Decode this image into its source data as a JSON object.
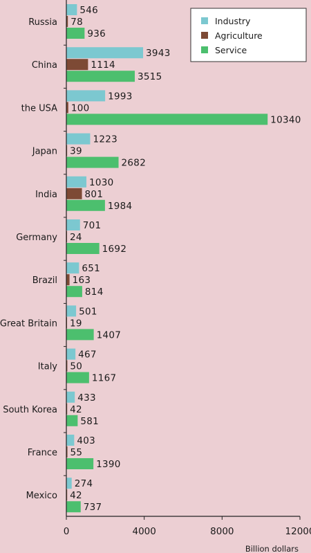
{
  "chart_data": {
    "type": "bar",
    "orientation": "horizontal",
    "categories": [
      "Russia",
      "China",
      "the USA",
      "Japan",
      "India",
      "Germany",
      "Brazil",
      "Great Britain",
      "Italy",
      "South Korea",
      "France",
      "Mexico"
    ],
    "series": [
      {
        "name": "Industry",
        "color": "#7cc8d0",
        "values": [
          546,
          3943,
          1993,
          1223,
          1030,
          701,
          651,
          501,
          467,
          433,
          403,
          274
        ]
      },
      {
        "name": "Agriculture",
        "color": "#7d4a35",
        "values": [
          78,
          1114,
          100,
          39,
          801,
          24,
          163,
          19,
          50,
          42,
          55,
          42
        ]
      },
      {
        "name": "Service",
        "color": "#4cbf6e",
        "values": [
          936,
          3515,
          10340,
          2682,
          1984,
          1692,
          814,
          1407,
          1167,
          581,
          1390,
          737
        ]
      }
    ],
    "xticks": [
      "0",
      "4000",
      "8000",
      "12000"
    ],
    "xlim": [
      0,
      12000
    ],
    "xlabel": "Billion dollars",
    "legend_position": "top-right",
    "grid": false
  }
}
